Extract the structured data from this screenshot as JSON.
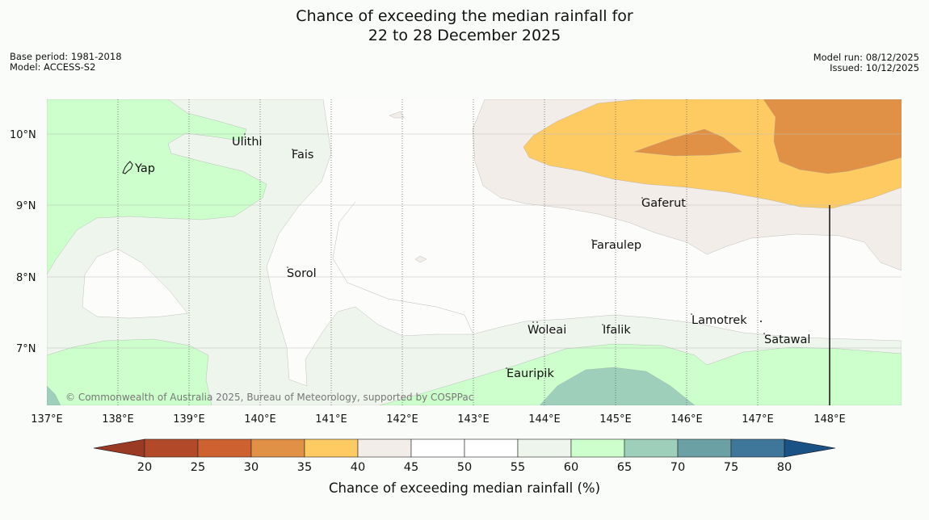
{
  "title_line1": "Chance of exceeding the median rainfall for",
  "title_line2": "22 to 28 December 2025",
  "base_period": "Base period: 1981-2018",
  "model": "Model: ACCESS-S2",
  "model_run": "Model run: 08/12/2025",
  "issued": "Issued: 10/12/2025",
  "copyright": "© Commonwealth of Australia 2025, Bureau of Meteorology, supported by COSPPac",
  "lat_labels": [
    "10°N",
    "9°N",
    "8°N",
    "7°N"
  ],
  "lon_labels": [
    "137°E",
    "138°E",
    "139°E",
    "140°E",
    "141°E",
    "142°E",
    "143°E",
    "144°E",
    "145°E",
    "146°E",
    "147°E",
    "148°E"
  ],
  "places": {
    "yap": "Yap",
    "ulithi": "Ulithi",
    "fais": "Fais",
    "gaferut": "Gaferut",
    "faraulep": "Faraulep",
    "sorol": "Sorol",
    "lamotrek": "Lamotrek",
    "woleai": "Woleai",
    "ifalik": "Ifalik",
    "satawal": "Satawal",
    "eauripik": "Eauripik"
  },
  "colorbar": {
    "title": "Chance of exceeding median rainfall (%)",
    "ticks": [
      "20",
      "25",
      "30",
      "35",
      "40",
      "45",
      "50",
      "55",
      "60",
      "65",
      "70",
      "75",
      "80"
    ],
    "colors": [
      "#9a3a24",
      "#b24a2a",
      "#cd6230",
      "#e09145",
      "#fecb63",
      "#f2ede8",
      "#ffffff",
      "#ffffff",
      "#eef5ec",
      "#ccffcc",
      "#9dcfbb",
      "#6ba1a4",
      "#3f779b",
      "#1a5285"
    ]
  },
  "chart_data": {
    "type": "map",
    "variable": "Chance of exceeding median rainfall (%)",
    "lon_range": [
      137,
      149
    ],
    "lat_range": [
      6.2,
      10.5
    ],
    "levels": [
      20,
      25,
      30,
      35,
      40,
      45,
      50,
      55,
      60,
      65,
      70,
      75,
      80
    ]
  }
}
